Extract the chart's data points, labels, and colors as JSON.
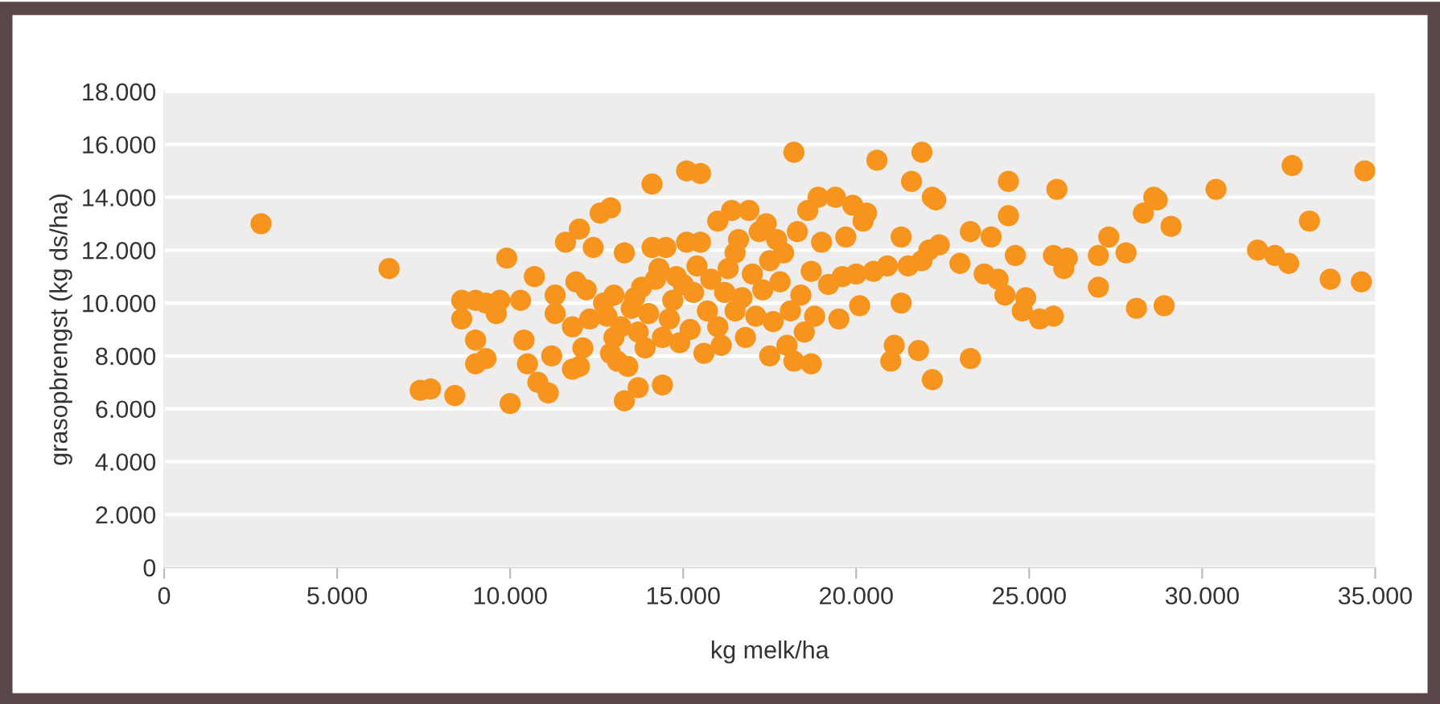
{
  "chart_data": {
    "type": "scatter",
    "xlabel": "kg melk/ha",
    "ylabel": "grasopbrengst (kg ds/ha)",
    "xlim": [
      0,
      35000
    ],
    "ylim": [
      0,
      18000
    ],
    "xticks": [
      0,
      {
        "value": 5000,
        "label": "5.000"
      },
      {
        "value": 10000,
        "label": "10.000"
      },
      {
        "value": 15000,
        "label": "15.000"
      },
      {
        "value": 20000,
        "label": "20.000"
      },
      {
        "value": 25000,
        "label": "25.000"
      },
      {
        "value": 30000,
        "label": "30.000"
      },
      {
        "value": 35000,
        "label": "35.000"
      }
    ],
    "yticks": [
      0,
      {
        "value": 2000,
        "label": "2.000"
      },
      {
        "value": 4000,
        "label": "4.000"
      },
      {
        "value": 6000,
        "label": "6.000"
      },
      {
        "value": 8000,
        "label": "8.000"
      },
      {
        "value": 10000,
        "label": "10.000"
      },
      {
        "value": 12000,
        "label": "12.000"
      },
      {
        "value": 14000,
        "label": "14.000"
      },
      {
        "value": 16000,
        "label": "16.000"
      },
      {
        "value": 18000,
        "label": "18.000"
      }
    ],
    "grid": "y",
    "marker": "circle",
    "series": [
      {
        "color": "#f7941d",
        "x": [
          2800,
          6500,
          7400,
          7700,
          8400,
          8600,
          8600,
          9000,
          9000,
          9000,
          9300,
          9300,
          9600,
          9700,
          9900,
          10000,
          10300,
          10400,
          10500,
          10700,
          10800,
          11100,
          11200,
          11300,
          11300,
          11600,
          11800,
          11800,
          11900,
          12000,
          12000,
          12100,
          12200,
          12300,
          12400,
          12600,
          12700,
          12800,
          12900,
          12900,
          13000,
          13000,
          13100,
          13200,
          13300,
          13300,
          13400,
          13500,
          13600,
          13700,
          13700,
          13800,
          13900,
          14000,
          14100,
          14100,
          14200,
          14300,
          14400,
          14400,
          14500,
          14600,
          14700,
          14800,
          14900,
          15000,
          15100,
          15100,
          15200,
          15300,
          15400,
          15500,
          15500,
          15600,
          15700,
          15800,
          16000,
          16000,
          16100,
          16200,
          16300,
          16400,
          16500,
          16500,
          16600,
          16700,
          16800,
          16900,
          17000,
          17100,
          17200,
          17300,
          17400,
          17500,
          17500,
          17600,
          17700,
          17800,
          17900,
          18000,
          18100,
          18200,
          18200,
          18300,
          18400,
          18500,
          18600,
          18700,
          18800,
          18900,
          18700,
          19000,
          19200,
          19400,
          19500,
          19600,
          19700,
          19900,
          20000,
          20100,
          20200,
          20300,
          20500,
          20600,
          20900,
          21000,
          21100,
          21300,
          21300,
          21500,
          21600,
          21800,
          21900,
          21900,
          22100,
          22200,
          22200,
          22300,
          22400,
          23000,
          23300,
          23300,
          23700,
          23900,
          24100,
          24300,
          24400,
          24400,
          24600,
          24800,
          24900,
          25300,
          25700,
          25700,
          25800,
          26000,
          26100,
          27000,
          27000,
          27300,
          27800,
          28100,
          28300,
          28600,
          28700,
          28900,
          29100,
          30400,
          31600,
          32100,
          32500,
          32600,
          33100,
          33700,
          34700,
          34600
        ],
        "values": [
          13000,
          11300,
          6700,
          6750,
          6500,
          10100,
          9400,
          10100,
          8600,
          7700,
          7900,
          10000,
          9600,
          10100,
          11700,
          6200,
          10100,
          8600,
          7700,
          11000,
          7000,
          6600,
          8000,
          10300,
          9600,
          12300,
          7500,
          9100,
          10800,
          12800,
          7600,
          8300,
          10500,
          9400,
          12100,
          13400,
          10000,
          9500,
          13600,
          8100,
          8700,
          10300,
          7800,
          9100,
          6300,
          11900,
          7600,
          9800,
          10200,
          8900,
          6800,
          10600,
          8300,
          9600,
          12100,
          14500,
          10900,
          11300,
          8700,
          6900,
          12100,
          9400,
          10100,
          11000,
          8500,
          10700,
          15000,
          12300,
          9000,
          10400,
          11400,
          14900,
          12300,
          8100,
          9700,
          10900,
          13100,
          9100,
          8400,
          10400,
          11300,
          13500,
          9700,
          11900,
          12400,
          10200,
          8700,
          13500,
          11100,
          9500,
          12700,
          10500,
          13000,
          8000,
          11600,
          9300,
          12400,
          10800,
          11900,
          8400,
          9700,
          7800,
          15700,
          12700,
          10300,
          8900,
          13500,
          11200,
          9500,
          14000,
          7700,
          12300,
          10700,
          14000,
          9400,
          11000,
          12500,
          13700,
          11100,
          9900,
          13100,
          13400,
          11200,
          15400,
          11400,
          7800,
          8400,
          10000,
          12500,
          11400,
          14600,
          8200,
          11600,
          15700,
          12000,
          14000,
          7100,
          13900,
          12200,
          11500,
          12700,
          7900,
          11100,
          12500,
          10900,
          10300,
          14600,
          13300,
          11800,
          9700,
          10200,
          9400,
          11800,
          9500,
          14300,
          11300,
          11700,
          10600,
          11800,
          12500,
          11900,
          9800,
          13400,
          14000,
          13900,
          9900,
          12900,
          14300,
          12000,
          11800,
          11500,
          15200,
          13100,
          10900,
          15000,
          10800
        ]
      }
    ]
  }
}
